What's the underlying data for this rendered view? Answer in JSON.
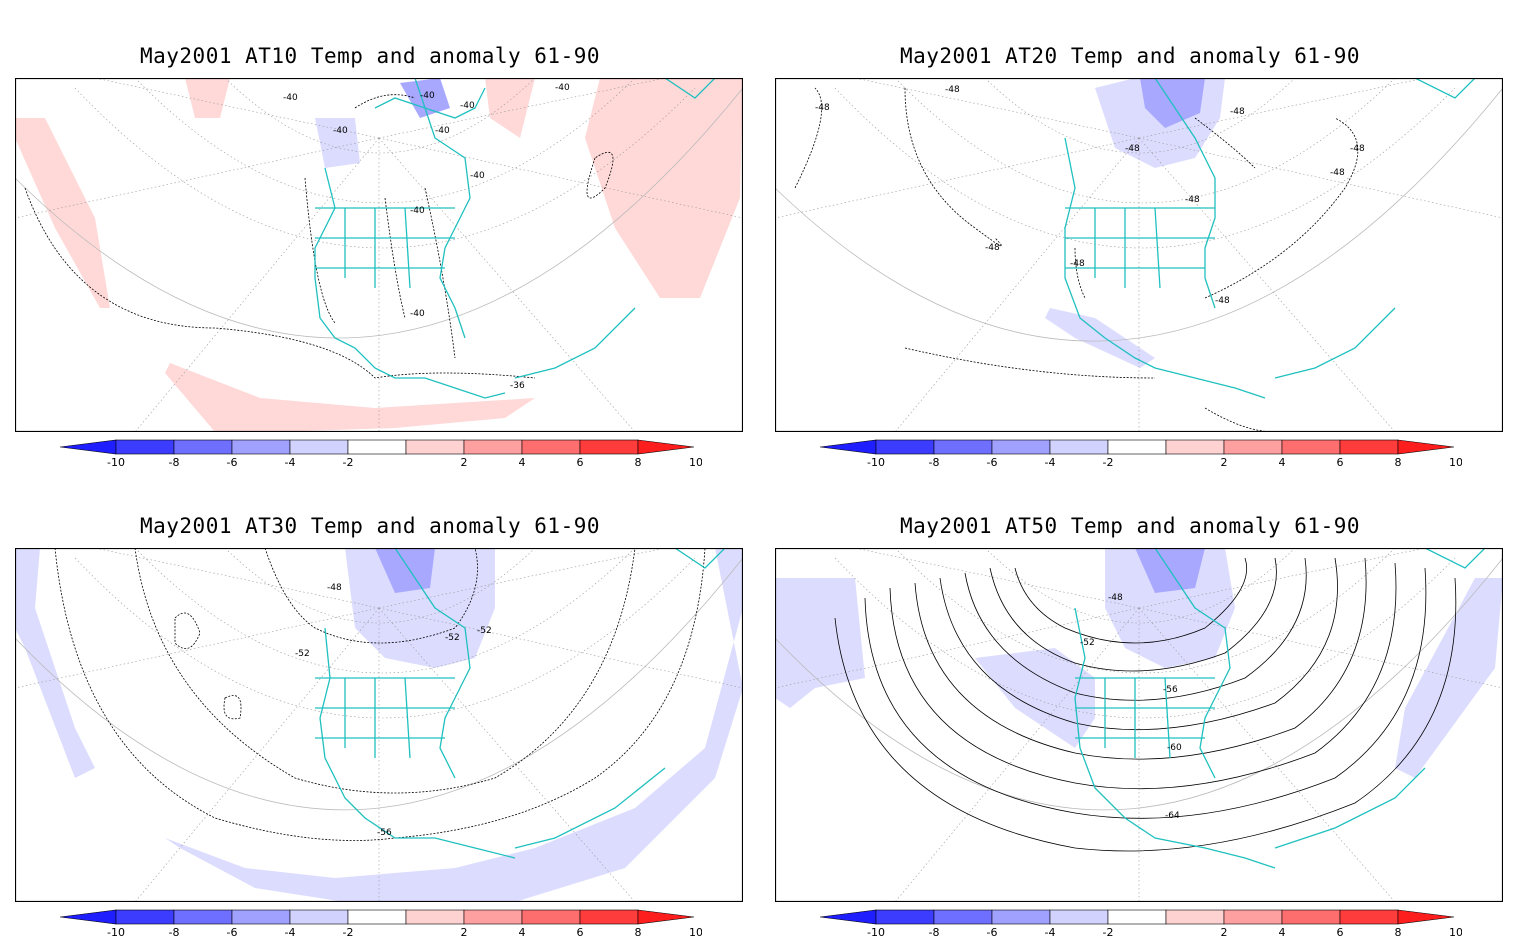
{
  "panels": [
    {
      "title": "May2001 AT10 Temp and anomaly 61-90",
      "contour_labels": [
        "-40",
        "-40",
        "-40",
        "-40",
        "-40",
        "-40",
        "-40",
        "-40",
        "-40",
        "-36"
      ]
    },
    {
      "title": "May2001 AT20 Temp and anomaly 61-90",
      "contour_labels": [
        "-48",
        "-48",
        "-48",
        "-48",
        "-48",
        "-48",
        "-48",
        "-48",
        "-48",
        "-48"
      ]
    },
    {
      "title": "May2001 AT30 Temp and anomaly 61-90",
      "contour_labels": [
        "-48",
        "-52",
        "-52",
        "-52",
        "-56"
      ]
    },
    {
      "title": "May2001 AT50 Temp and anomaly 61-90",
      "contour_labels": [
        "-48",
        "-52",
        "-56",
        "-60",
        "-64"
      ]
    }
  ],
  "colorbar": {
    "tick_labels": [
      "-10",
      "-8",
      "-6",
      "-4",
      "-2",
      "2",
      "4",
      "6",
      "8",
      "10"
    ],
    "colors": [
      "#1e1eff",
      "#3c3cff",
      "#6e6eff",
      "#a0a0ff",
      "#d2d2ff",
      "#ffffff",
      "#ffd2d2",
      "#ffa0a0",
      "#ff6e6e",
      "#ff3c3c",
      "#ff1e1e"
    ]
  },
  "colors": {
    "coastline": "#20c0c0",
    "frame": "#000000",
    "grid": "#888888"
  }
}
